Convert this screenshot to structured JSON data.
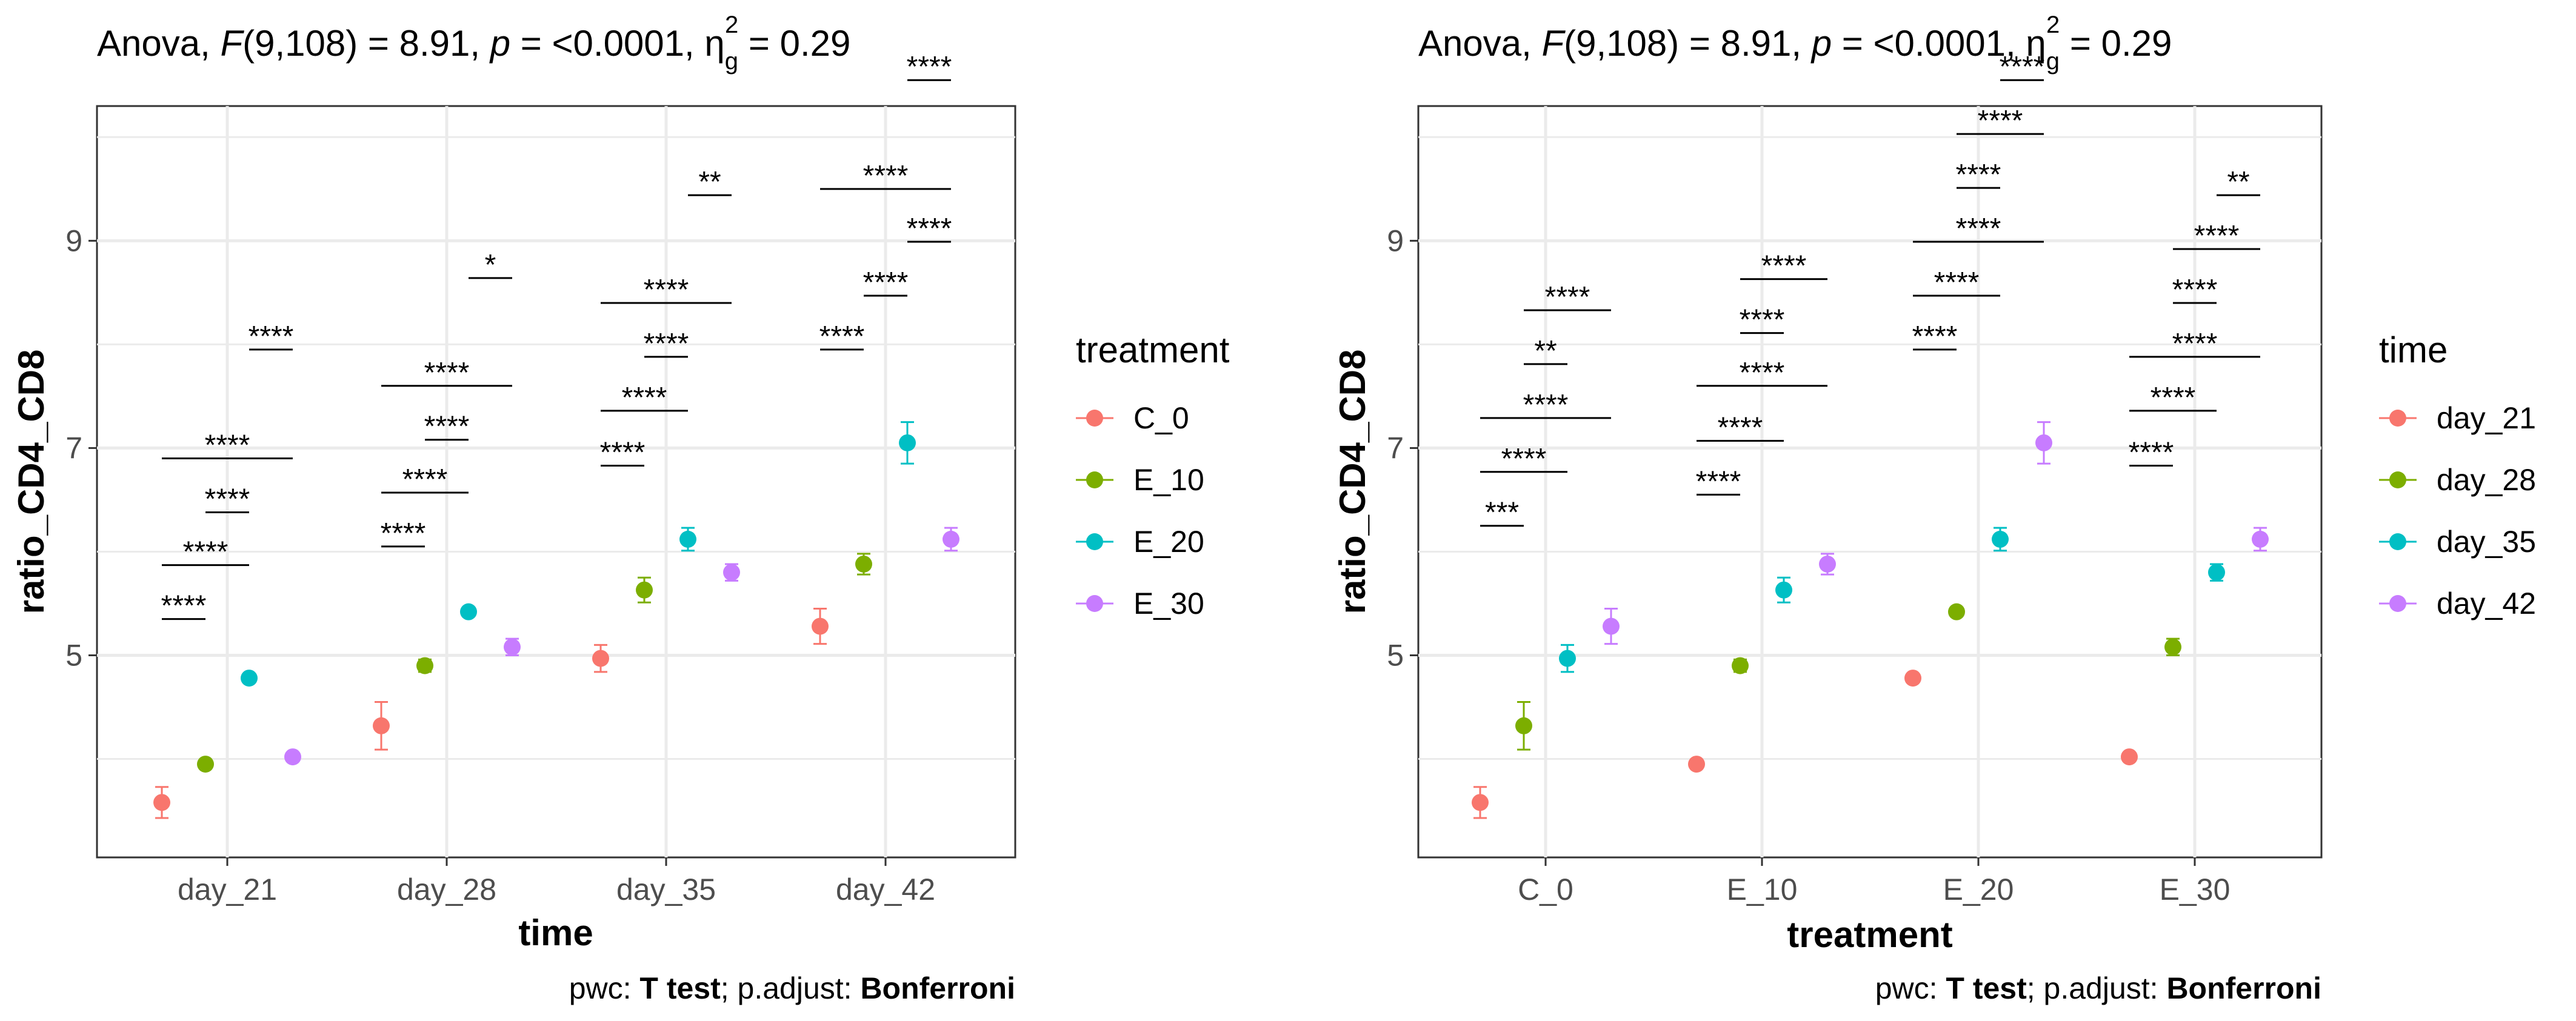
{
  "figure": {
    "colors": {
      "red": "#F8766D",
      "green": "#7CAE00",
      "cyan": "#00BFC4",
      "purple": "#C77CFF",
      "panel_border": "#333333",
      "grid": "#EBEBEB"
    }
  },
  "chart_data": [
    {
      "type": "scatter",
      "title_text": "Anova, F(9,108) = 8.91, p = <0.0001, ηg2 = 0.29",
      "title_parts": {
        "anova": "Anova, ",
        "F": "F",
        "fstat": "(9,108) = 8.91, ",
        "p": "p",
        "pval": " = <0.0001, ",
        "eta": "η",
        "g": "g",
        "two": "2",
        "es": " = 0.29"
      },
      "caption": {
        "prefix": "pwc: ",
        "test": "T test",
        "middle": "; p.adjust: ",
        "method": "Bonferroni"
      },
      "xlabel": "time",
      "ylabel": "ratio_CD4_CD8",
      "ylim": [
        3.05,
        10.3
      ],
      "yticks": [
        5,
        7,
        9
      ],
      "categories": [
        "day_21",
        "day_28",
        "day_35",
        "day_42"
      ],
      "legend_title": "treatment",
      "legend_position": "right",
      "series": [
        {
          "name": "C_0",
          "color": "#F8766D",
          "values": [
            3.58,
            4.32,
            4.97,
            5.28
          ],
          "se": [
            0.15,
            0.23,
            0.13,
            0.17
          ]
        },
        {
          "name": "E_10",
          "color": "#7CAE00",
          "values": [
            3.95,
            4.9,
            5.63,
            5.88
          ],
          "se": [
            0.04,
            0.06,
            0.12,
            0.1
          ]
        },
        {
          "name": "E_20",
          "color": "#00BFC4",
          "values": [
            4.78,
            5.42,
            6.12,
            7.05
          ],
          "se": [
            0.04,
            0.04,
            0.11,
            0.2
          ]
        },
        {
          "name": "E_30",
          "color": "#C77CFF",
          "values": [
            4.02,
            5.08,
            5.8,
            6.12
          ],
          "se": [
            0.04,
            0.08,
            0.08,
            0.11
          ]
        }
      ],
      "annotations": [
        {
          "group": 0,
          "from": 0,
          "to": 1,
          "y": 5.35,
          "label": "****"
        },
        {
          "group": 0,
          "from": 0,
          "to": 2,
          "y": 5.87,
          "label": "****"
        },
        {
          "group": 0,
          "from": 1,
          "to": 2,
          "y": 6.38,
          "label": "****"
        },
        {
          "group": 0,
          "from": 0,
          "to": 3,
          "y": 6.9,
          "label": "****"
        },
        {
          "group": 0,
          "from": 2,
          "to": 3,
          "y": 7.95,
          "label": "****"
        },
        {
          "group": 1,
          "from": 0,
          "to": 1,
          "y": 6.05,
          "label": "****"
        },
        {
          "group": 1,
          "from": 0,
          "to": 2,
          "y": 6.57,
          "label": "****"
        },
        {
          "group": 1,
          "from": 1,
          "to": 2,
          "y": 7.08,
          "label": "****"
        },
        {
          "group": 1,
          "from": 0,
          "to": 3,
          "y": 7.6,
          "label": "****"
        },
        {
          "group": 1,
          "from": 2,
          "to": 3,
          "y": 8.64,
          "label": "*"
        },
        {
          "group": 2,
          "from": 0,
          "to": 1,
          "y": 6.83,
          "label": "****"
        },
        {
          "group": 2,
          "from": 0,
          "to": 2,
          "y": 7.36,
          "label": "****"
        },
        {
          "group": 2,
          "from": 1,
          "to": 2,
          "y": 7.88,
          "label": "****"
        },
        {
          "group": 2,
          "from": 0,
          "to": 3,
          "y": 8.4,
          "label": "****"
        },
        {
          "group": 2,
          "from": 2,
          "to": 3,
          "y": 9.44,
          "label": "**"
        },
        {
          "group": 3,
          "from": 0,
          "to": 1,
          "y": 7.95,
          "label": "****"
        },
        {
          "group": 3,
          "from": 1,
          "to": 2,
          "y": 8.47,
          "label": "****"
        },
        {
          "group": 3,
          "from": 2,
          "to": 3,
          "y": 8.99,
          "label": "****"
        },
        {
          "group": 3,
          "from": 0,
          "to": 3,
          "y": 9.5,
          "label": "****"
        },
        {
          "group": 3,
          "from": 2,
          "to": 3,
          "y": 10.55,
          "label": "****"
        }
      ]
    },
    {
      "type": "scatter",
      "title_text": "Anova, F(9,108) = 8.91, p = <0.0001, ηg2 = 0.29",
      "title_parts": {
        "anova": "Anova, ",
        "F": "F",
        "fstat": "(9,108) = 8.91, ",
        "p": "p",
        "pval": " = <0.0001, ",
        "eta": "η",
        "g": "g",
        "two": "2",
        "es": " = 0.29"
      },
      "caption": {
        "prefix": "pwc: ",
        "test": "T test",
        "middle": "; p.adjust: ",
        "method": "Bonferroni"
      },
      "xlabel": "treatment",
      "ylabel": "ratio_CD4_CD8",
      "ylim": [
        3.05,
        10.3
      ],
      "yticks": [
        5,
        7,
        9
      ],
      "categories": [
        "C_0",
        "E_10",
        "E_20",
        "E_30"
      ],
      "legend_title": "time",
      "legend_position": "right",
      "series": [
        {
          "name": "day_21",
          "color": "#F8766D",
          "values": [
            3.58,
            3.95,
            4.78,
            4.02
          ],
          "se": [
            0.15,
            0.04,
            0.04,
            0.04
          ]
        },
        {
          "name": "day_28",
          "color": "#7CAE00",
          "values": [
            4.32,
            4.9,
            5.42,
            5.08
          ],
          "se": [
            0.23,
            0.06,
            0.04,
            0.08
          ]
        },
        {
          "name": "day_35",
          "color": "#00BFC4",
          "values": [
            4.97,
            5.63,
            6.12,
            5.8
          ],
          "se": [
            0.13,
            0.12,
            0.11,
            0.08
          ]
        },
        {
          "name": "day_42",
          "color": "#C77CFF",
          "values": [
            5.28,
            5.88,
            7.05,
            6.12
          ],
          "se": [
            0.17,
            0.1,
            0.2,
            0.11
          ]
        }
      ],
      "annotations": [
        {
          "group": 0,
          "from": 0,
          "to": 1,
          "y": 6.25,
          "label": "***"
        },
        {
          "group": 0,
          "from": 0,
          "to": 2,
          "y": 6.77,
          "label": "****"
        },
        {
          "group": 0,
          "from": 0,
          "to": 3,
          "y": 7.29,
          "label": "****"
        },
        {
          "group": 0,
          "from": 1,
          "to": 2,
          "y": 7.81,
          "label": "**"
        },
        {
          "group": 0,
          "from": 1,
          "to": 3,
          "y": 8.33,
          "label": "****"
        },
        {
          "group": 1,
          "from": 0,
          "to": 1,
          "y": 6.55,
          "label": "****"
        },
        {
          "group": 1,
          "from": 0,
          "to": 2,
          "y": 7.07,
          "label": "****"
        },
        {
          "group": 1,
          "from": 0,
          "to": 3,
          "y": 7.6,
          "label": "****"
        },
        {
          "group": 1,
          "from": 1,
          "to": 2,
          "y": 8.11,
          "label": "****"
        },
        {
          "group": 1,
          "from": 1,
          "to": 3,
          "y": 8.63,
          "label": "****"
        },
        {
          "group": 2,
          "from": 0,
          "to": 1,
          "y": 7.95,
          "label": "****"
        },
        {
          "group": 2,
          "from": 0,
          "to": 2,
          "y": 8.47,
          "label": "****"
        },
        {
          "group": 2,
          "from": 0,
          "to": 3,
          "y": 8.99,
          "label": "****"
        },
        {
          "group": 2,
          "from": 1,
          "to": 2,
          "y": 9.51,
          "label": "****"
        },
        {
          "group": 2,
          "from": 1,
          "to": 3,
          "y": 10.03,
          "label": "****"
        },
        {
          "group": 2,
          "from": 2,
          "to": 3,
          "y": 10.55,
          "label": "****"
        },
        {
          "group": 3,
          "from": 0,
          "to": 1,
          "y": 6.83,
          "label": "****"
        },
        {
          "group": 3,
          "from": 0,
          "to": 2,
          "y": 7.36,
          "label": "****"
        },
        {
          "group": 3,
          "from": 0,
          "to": 3,
          "y": 7.88,
          "label": "****"
        },
        {
          "group": 3,
          "from": 1,
          "to": 2,
          "y": 8.4,
          "label": "****"
        },
        {
          "group": 3,
          "from": 1,
          "to": 3,
          "y": 8.92,
          "label": "****"
        },
        {
          "group": 3,
          "from": 2,
          "to": 3,
          "y": 9.44,
          "label": "**"
        }
      ]
    }
  ]
}
